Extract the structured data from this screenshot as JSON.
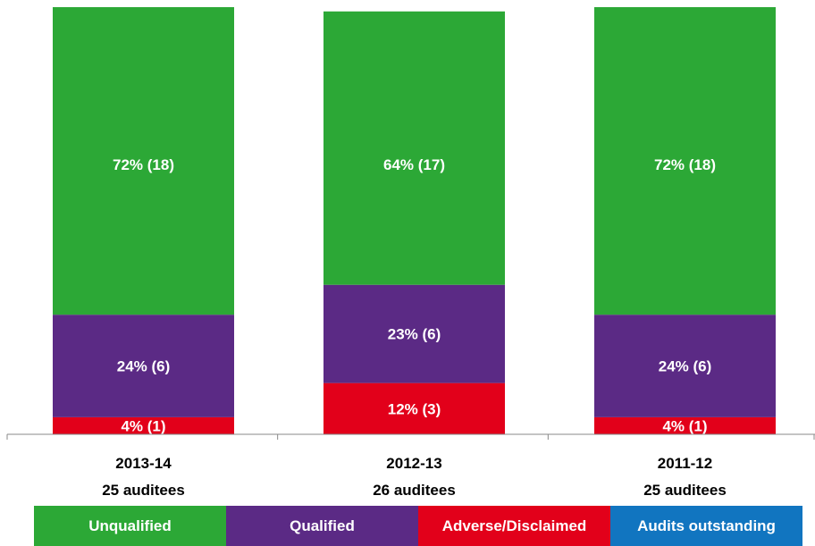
{
  "chart_data": {
    "type": "bar",
    "stacked": true,
    "categories": [
      "2013-14",
      "2012-13",
      "2011-12"
    ],
    "subcategories": [
      "25 auditees",
      "26 auditees",
      "25 auditees"
    ],
    "series": [
      {
        "name": "Unqualified",
        "color": "#2ca836",
        "values": [
          72,
          64,
          72
        ],
        "labels": [
          "72% (18)",
          "64% (17)",
          "72% (18)"
        ]
      },
      {
        "name": "Qualified",
        "color": "#5b2a85",
        "values": [
          24,
          23,
          24
        ],
        "labels": [
          "24% (6)",
          "23% (6)",
          "24% (6)"
        ]
      },
      {
        "name": "Adverse/Disclaimed",
        "color": "#e2001a",
        "values": [
          4,
          12,
          4
        ],
        "labels": [
          "4% (1)",
          "12% (3)",
          "4% (1)"
        ]
      },
      {
        "name": "Audits outstanding",
        "color": "#1175c0",
        "values": [
          0,
          0,
          0
        ],
        "labels": [
          "",
          "",
          ""
        ]
      }
    ],
    "ylim": [
      0,
      100
    ],
    "grid": false,
    "legend_position": "bottom"
  }
}
